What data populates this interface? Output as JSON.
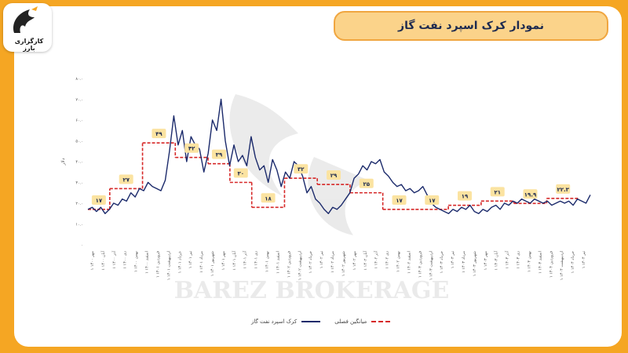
{
  "logo": {
    "text": "کارگزاری بارز"
  },
  "title": "نمودار کرک اسپرد نفت گاز",
  "watermark": "BAREZ BROKERAGE",
  "colors": {
    "series": "#1b2a6b",
    "avg": "#d62828",
    "label_bg": "#fbe3a1",
    "grid": "#e8e8e8"
  },
  "chart_data": {
    "type": "line",
    "ylabel": "دلار",
    "ylim": [
      0,
      80
    ],
    "yticks": [
      "۰",
      "۱۰.۰",
      "۲۰.۰",
      "۳۰.۰",
      "۴۰.۰",
      "۵۰.۰",
      "۶۰.۰",
      "۷۰.۰",
      "۸۰.۰"
    ],
    "x_tick_labels": [
      "۱ مهر ۱۴۰۰",
      "۱ آبان ۱۴۰۰",
      "۱ آذر ۱۴۰۰",
      "۱ دی ۱۴۰۰",
      "۱ بهمن ۱۴۰۰",
      "۱ اسفند ۱۴۰۰",
      "۱ فروردین ۱۴۰۱",
      "۱ اردیبهشت ۱۴۰۱",
      "۱ خرداد ۱۴۰۱",
      "۱ تیر ۱۴۰۱",
      "۱ مرداد ۱۴۰۱",
      "۱ شهریور ۱۴۰۱",
      "۱ مهر ۱۴۰۱",
      "۱ آبان ۱۴۰۱",
      "۱ آذر ۱۴۰۱",
      "۱ دی ۱۴۰۱",
      "۱ بهمن ۱۴۰۱",
      "۱ اسفند ۱۴۰۱",
      "۱ فروردین ۱۴۰۲",
      "۱ اردیبهشت ۱۴۰۲",
      "۱ خرداد ۱۴۰۲",
      "۱ تیر ۱۴۰۲",
      "۱ مرداد ۱۴۰۲",
      "۱ شهریور ۱۴۰۲",
      "۱ مهر ۱۴۰۲",
      "۱ آبان ۱۴۰۲",
      "۱ آذر ۱۴۰۲",
      "۱ دی ۱۴۰۲",
      "۱ بهمن ۱۴۰۲",
      "۱ اسفند ۱۴۰۲",
      "۱ فروردین ۱۴۰۳",
      "۱ اردیبهشت ۱۴۰۳",
      "۱ خرداد ۱۴۰۳",
      "۱ تیر ۱۴۰۳",
      "۱ مرداد ۱۴۰۳",
      "۱ شهریور ۱۴۰۳",
      "۱ مهر ۱۴۰۳",
      "۱ آبان ۱۴۰۳",
      "۱ آذر ۱۴۰۳",
      "۱ دی ۱۴۰۳",
      "۱ بهمن ۱۴۰۳",
      "۱ اسفند ۱۴۰۳",
      "۱ فروردین ۱۴۰۴",
      "۱ اردیبهشت ۱۴۰۴",
      "۱ خرداد ۱۴۰۴",
      "۱ تیر ۱۴۰۴"
    ],
    "series": [
      {
        "name": "کرک اسپرد نفت گاز",
        "values": [
          17,
          18,
          16,
          18,
          15,
          17,
          20,
          19,
          22,
          21,
          25,
          23,
          27,
          26,
          30,
          28,
          27,
          26,
          31,
          45,
          62,
          48,
          55,
          40,
          52,
          48,
          46,
          35,
          44,
          60,
          55,
          70,
          50,
          38,
          48,
          40,
          43,
          38,
          52,
          42,
          36,
          38,
          30,
          41,
          36,
          28,
          35,
          32,
          40,
          38,
          33,
          25,
          28,
          22,
          20,
          17,
          15,
          18,
          17,
          19,
          22,
          25,
          32,
          34,
          38,
          36,
          40,
          39,
          41,
          35,
          33,
          30,
          28,
          29,
          26,
          27,
          25,
          26,
          28,
          24,
          20,
          18,
          17,
          16,
          15,
          17,
          16,
          18,
          17,
          19,
          16,
          15,
          17,
          16,
          18,
          19,
          17,
          20,
          19,
          21,
          20,
          22,
          21,
          20,
          22,
          21,
          20,
          21,
          19,
          20,
          21,
          20,
          21,
          19,
          22,
          21,
          20,
          24
        ]
      }
    ],
    "avg_segments": [
      {
        "from": 0,
        "to": 2,
        "value": 17,
        "label": "۱۷"
      },
      {
        "from": 2,
        "to": 5,
        "value": 27,
        "label": "۲۷"
      },
      {
        "from": 5,
        "to": 8,
        "value": 49,
        "label": "۴۹"
      },
      {
        "from": 8,
        "to": 11,
        "value": 42,
        "label": "۴۲"
      },
      {
        "from": 11,
        "to": 13,
        "value": 39,
        "label": "۳۹"
      },
      {
        "from": 13,
        "to": 15,
        "value": 30,
        "label": "۳۰"
      },
      {
        "from": 15,
        "to": 18,
        "value": 18,
        "label": "۱۸"
      },
      {
        "from": 18,
        "to": 21,
        "value": 32,
        "label": "۳۲"
      },
      {
        "from": 21,
        "to": 24,
        "value": 29,
        "label": "۲۹"
      },
      {
        "from": 24,
        "to": 27,
        "value": 25,
        "label": "۲۵"
      },
      {
        "from": 27,
        "to": 30,
        "value": 17,
        "label": "۱۷"
      },
      {
        "from": 30,
        "to": 33,
        "value": 17,
        "label": "۱۷"
      },
      {
        "from": 33,
        "to": 36,
        "value": 19,
        "label": "۱۹"
      },
      {
        "from": 36,
        "to": 39,
        "value": 21,
        "label": "۲۱"
      },
      {
        "from": 39,
        "to": 42,
        "value": 19.9,
        "label": "۱۹.۹"
      },
      {
        "from": 42,
        "to": 45,
        "value": 22.3,
        "label": "۲۲.۳"
      }
    ],
    "legend": [
      "کرک اسپرد نفت گاز",
      "میانگین فصلی"
    ],
    "legend_position": "bottom",
    "grid": false
  }
}
